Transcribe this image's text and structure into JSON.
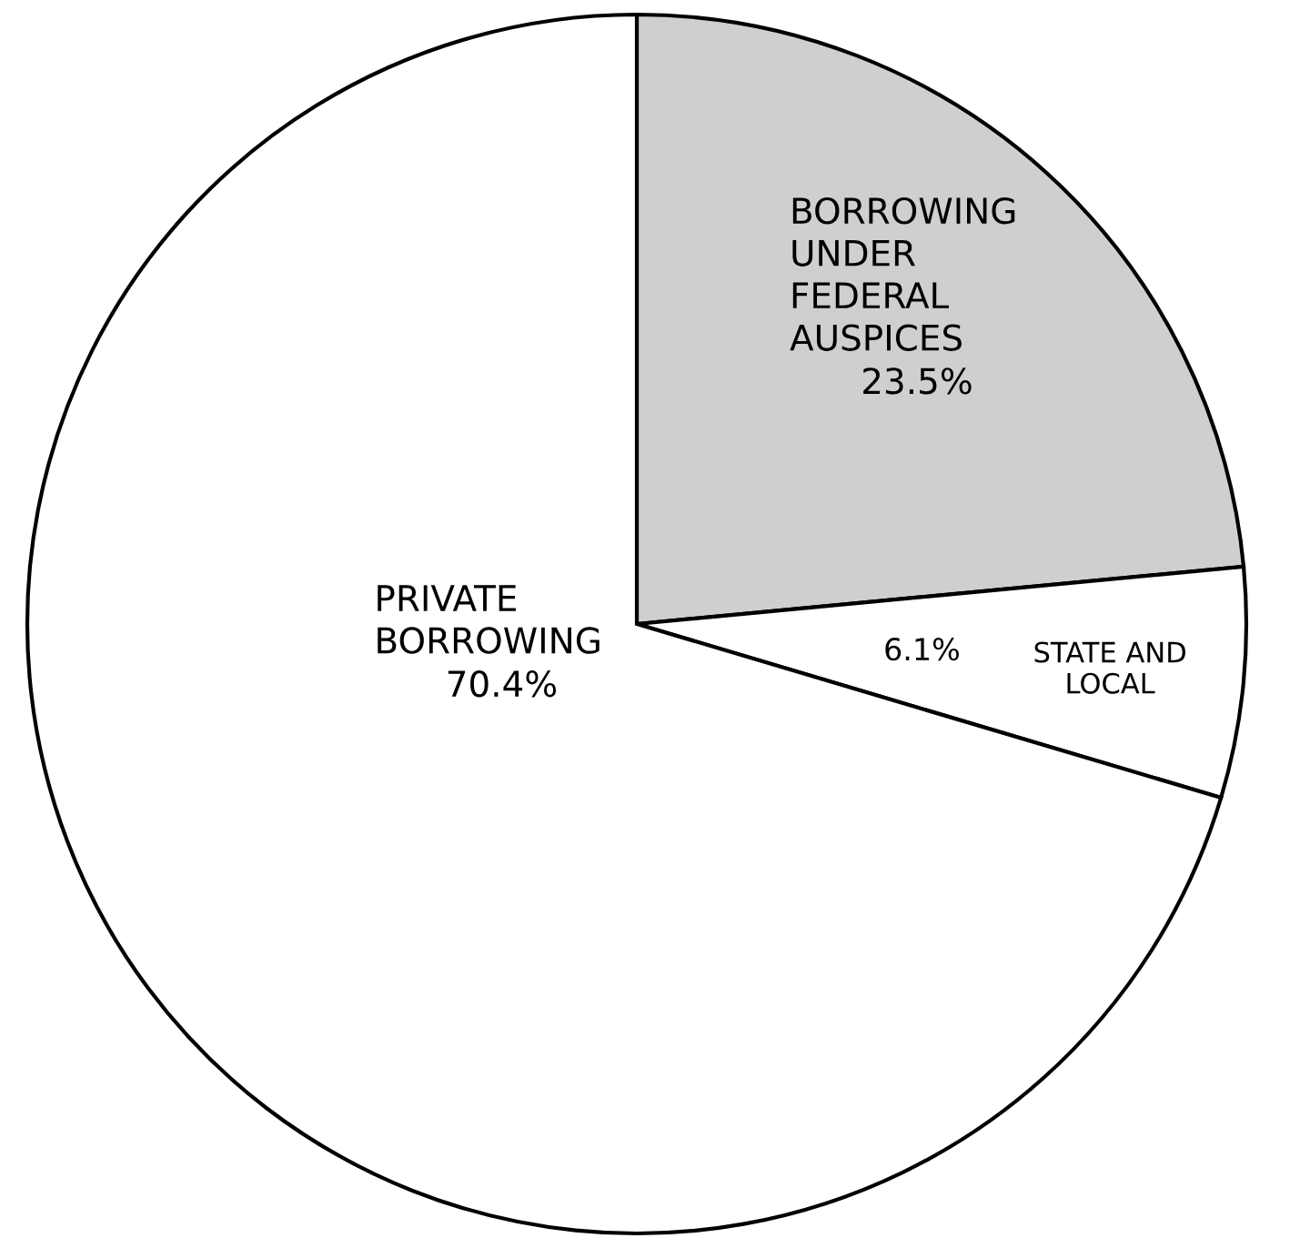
{
  "chart_data": {
    "type": "pie",
    "categories": [
      "BORROWING\nUNDER\nFEDERAL\nAUSPICES",
      "STATE AND\nLOCAL",
      "PRIVATE\nBORROWING"
    ],
    "values": [
      23.5,
      6.1,
      70.4
    ],
    "value_labels": [
      "23.5%",
      "6.1%",
      "70.4%"
    ],
    "colors": [
      "#cfcfcf",
      "#ffffff",
      "#ffffff"
    ],
    "legend": false
  }
}
